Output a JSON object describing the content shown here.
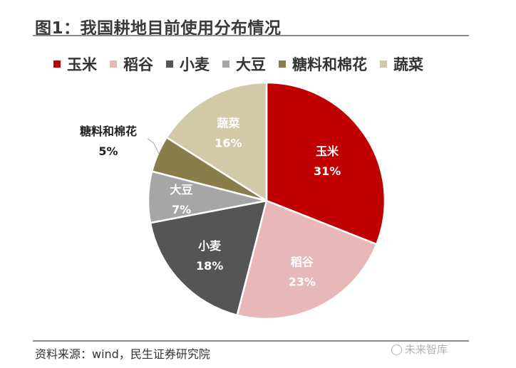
{
  "title": "图1：我国耕地目前使用分布情况",
  "source": "资料来源：wind，民生证券研究院",
  "watermark": "未来智库",
  "colors": {
    "玉米": "#c00000",
    "稻谷": "#e8b8b8",
    "小麦": "#555555",
    "大豆": "#a6a6a6",
    "糖料和棉花": "#8a7d4c",
    "蔬菜": "#d2c9a9"
  },
  "chart_data": {
    "type": "pie",
    "title": "",
    "categories": [
      "玉米",
      "稻谷",
      "小麦",
      "大豆",
      "糖料和棉花",
      "蔬菜"
    ],
    "values": [
      31,
      23,
      18,
      7,
      5,
      16
    ],
    "unit": "%",
    "value_labels": [
      "31%",
      "23%",
      "18%",
      "7%",
      "5%",
      "16%"
    ],
    "start_angle_deg": 0,
    "direction": "clockwise",
    "legend": {
      "position": "top",
      "entries": [
        "玉米",
        "稻谷",
        "小麦",
        "大豆",
        "糖料和棉花",
        "蔬菜"
      ]
    },
    "label_colors": [
      "#ffffff",
      "#ffffff",
      "#ffffff",
      "#ffffff",
      "#222222",
      "#ffffff"
    ]
  }
}
